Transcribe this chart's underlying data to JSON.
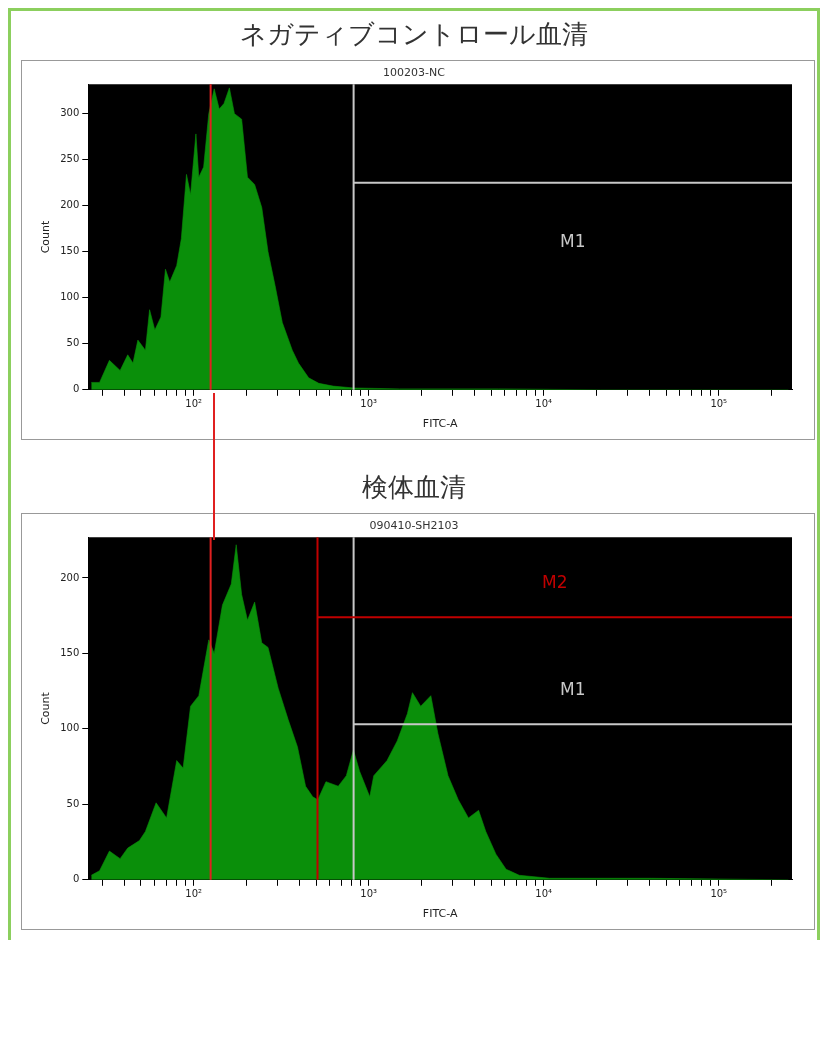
{
  "chart_data": [
    {
      "type": "area",
      "title": "ネガティブコントロール血清",
      "subtitle": "100203-NC",
      "xlabel": "FITC-A",
      "ylabel": "Count",
      "log": "x",
      "grid": false,
      "legend": false,
      "xlim": [
        25,
        262144
      ],
      "xticks": [
        {
          "value": 30,
          "label": null
        },
        {
          "value": 40,
          "label": null
        },
        {
          "value": 50,
          "label": null
        },
        {
          "value": 60,
          "label": null
        },
        {
          "value": 70,
          "label": null
        },
        {
          "value": 80,
          "label": null
        },
        {
          "value": 90,
          "label": null
        },
        {
          "value": 100,
          "label": "10²"
        },
        {
          "value": 200,
          "label": null
        },
        {
          "value": 300,
          "label": null
        },
        {
          "value": 400,
          "label": null
        },
        {
          "value": 500,
          "label": null
        },
        {
          "value": 600,
          "label": null
        },
        {
          "value": 700,
          "label": null
        },
        {
          "value": 800,
          "label": null
        },
        {
          "value": 900,
          "label": null
        },
        {
          "value": 1000,
          "label": "10³"
        },
        {
          "value": 2000,
          "label": null
        },
        {
          "value": 3000,
          "label": null
        },
        {
          "value": 4000,
          "label": null
        },
        {
          "value": 5000,
          "label": null
        },
        {
          "value": 6000,
          "label": null
        },
        {
          "value": 7000,
          "label": null
        },
        {
          "value": 8000,
          "label": null
        },
        {
          "value": 9000,
          "label": null
        },
        {
          "value": 10000,
          "label": "10⁴"
        },
        {
          "value": 20000,
          "label": null
        },
        {
          "value": 30000,
          "label": null
        },
        {
          "value": 40000,
          "label": null
        },
        {
          "value": 50000,
          "label": null
        },
        {
          "value": 60000,
          "label": null
        },
        {
          "value": 70000,
          "label": null
        },
        {
          "value": 80000,
          "label": null
        },
        {
          "value": 90000,
          "label": null
        },
        {
          "value": 100000,
          "label": "10⁵"
        },
        {
          "value": 200000,
          "label": null
        }
      ],
      "ylim": [
        0,
        332
      ],
      "yticks": [
        0,
        50,
        100,
        150,
        200,
        250,
        300
      ],
      "x": [
        26,
        29,
        33,
        38,
        42,
        45,
        48,
        53,
        56,
        60,
        65,
        69,
        73,
        80,
        85,
        91,
        96,
        103,
        107,
        114,
        122,
        131,
        140,
        149,
        160,
        171,
        188,
        203,
        223,
        245,
        266,
        292,
        321,
        366,
        397,
        454,
        519,
        626,
        818,
        1500,
        5500,
        21000,
        81000,
        250000
      ],
      "values": [
        8,
        8,
        32,
        21,
        38,
        29,
        54,
        43,
        87,
        65,
        79,
        131,
        117,
        135,
        164,
        234,
        212,
        278,
        231,
        242,
        300,
        327,
        305,
        311,
        328,
        300,
        294,
        231,
        223,
        198,
        150,
        113,
        73,
        43,
        29,
        13,
        7,
        4,
        2,
        1,
        1,
        0,
        0,
        0
      ],
      "color": "#0a8f0a",
      "ref_lines": [
        {
          "axis": "x",
          "value": 125,
          "color": "#e02020"
        },
        {
          "axis": "x",
          "value": 820,
          "label": "M1",
          "color": "#c8c8c8"
        },
        {
          "axis": "y",
          "value": 225,
          "color": "#c8c8c8"
        }
      ]
    },
    {
      "type": "area",
      "title": "検体血清",
      "subtitle": "090410-SH2103",
      "xlabel": "FITC-A",
      "ylabel": "Count",
      "log": "x",
      "grid": false,
      "legend": false,
      "xlim": [
        25,
        262144
      ],
      "xticks": [
        {
          "value": 30,
          "label": null
        },
        {
          "value": 40,
          "label": null
        },
        {
          "value": 50,
          "label": null
        },
        {
          "value": 60,
          "label": null
        },
        {
          "value": 70,
          "label": null
        },
        {
          "value": 80,
          "label": null
        },
        {
          "value": 90,
          "label": null
        },
        {
          "value": 100,
          "label": "10²"
        },
        {
          "value": 200,
          "label": null
        },
        {
          "value": 300,
          "label": null
        },
        {
          "value": 400,
          "label": null
        },
        {
          "value": 500,
          "label": null
        },
        {
          "value": 600,
          "label": null
        },
        {
          "value": 700,
          "label": null
        },
        {
          "value": 800,
          "label": null
        },
        {
          "value": 900,
          "label": null
        },
        {
          "value": 1000,
          "label": "10³"
        },
        {
          "value": 2000,
          "label": null
        },
        {
          "value": 3000,
          "label": null
        },
        {
          "value": 4000,
          "label": null
        },
        {
          "value": 5000,
          "label": null
        },
        {
          "value": 6000,
          "label": null
        },
        {
          "value": 7000,
          "label": null
        },
        {
          "value": 8000,
          "label": null
        },
        {
          "value": 9000,
          "label": null
        },
        {
          "value": 10000,
          "label": "10⁴"
        },
        {
          "value": 20000,
          "label": null
        },
        {
          "value": 30000,
          "label": null
        },
        {
          "value": 40000,
          "label": null
        },
        {
          "value": 50000,
          "label": null
        },
        {
          "value": 60000,
          "label": null
        },
        {
          "value": 70000,
          "label": null
        },
        {
          "value": 80000,
          "label": null
        },
        {
          "value": 90000,
          "label": null
        },
        {
          "value": 100000,
          "label": "10⁵"
        },
        {
          "value": 200000,
          "label": null
        }
      ],
      "ylim": [
        0,
        227
      ],
      "yticks": [
        0,
        50,
        100,
        150,
        200
      ],
      "x": [
        26,
        29,
        33,
        38,
        42,
        49,
        53,
        61,
        70,
        80,
        87,
        96,
        107,
        122,
        131,
        146,
        164,
        175,
        188,
        203,
        223,
        245,
        266,
        304,
        347,
        392,
        436,
        479,
        512,
        570,
        670,
        745,
        818,
        887,
        1014,
        1069,
        1273,
        1455,
        1663,
        1778,
        1982,
        2265,
        2485,
        2840,
        3250,
        3715,
        4246,
        4667,
        5333,
        6095,
        7250,
        10800,
        41300,
        250000
      ],
      "values": [
        3,
        6,
        19,
        14,
        21,
        26,
        32,
        51,
        41,
        79,
        74,
        115,
        122,
        159,
        150,
        182,
        196,
        222,
        189,
        172,
        184,
        157,
        154,
        127,
        106,
        88,
        62,
        55,
        53,
        65,
        62,
        69,
        86,
        72,
        55,
        69,
        79,
        92,
        110,
        124,
        115,
        122,
        97,
        69,
        53,
        41,
        46,
        32,
        17,
        7,
        3,
        1,
        1,
        0
      ],
      "color": "#0a8f0a",
      "ref_lines": [
        {
          "axis": "x",
          "value": 125,
          "color": "#e02020"
        },
        {
          "axis": "x",
          "value": 820,
          "label": "M1",
          "color": "#c8c8c8"
        },
        {
          "axis": "y",
          "value": 103,
          "color": "#c8c8c8"
        },
        {
          "axis": "x",
          "value": 510,
          "label": "M2",
          "color": "#c00000"
        },
        {
          "axis": "y",
          "value": 174,
          "color": "#c00000"
        }
      ]
    }
  ]
}
